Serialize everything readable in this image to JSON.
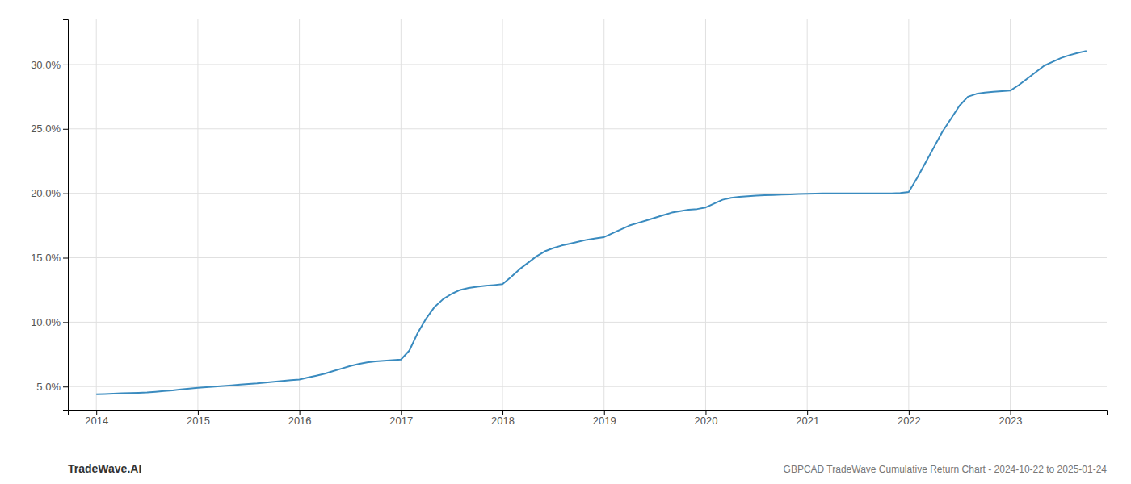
{
  "chart_data": {
    "type": "line",
    "title": "GBPCAD TradeWave Cumulative Return Chart - 2024-10-22 to 2025-01-24",
    "annotations": [
      "TradeWave.AI"
    ],
    "color": "#3a8bbf",
    "grid": true,
    "x": [
      2014.0,
      2014.083,
      2014.167,
      2014.25,
      2014.333,
      2014.417,
      2014.5,
      2014.583,
      2014.667,
      2014.75,
      2014.833,
      2014.917,
      2015.0,
      2015.083,
      2015.167,
      2015.25,
      2015.333,
      2015.417,
      2015.5,
      2015.583,
      2015.667,
      2015.75,
      2015.833,
      2015.917,
      2016.0,
      2016.083,
      2016.167,
      2016.25,
      2016.333,
      2016.417,
      2016.5,
      2016.583,
      2016.667,
      2016.75,
      2016.833,
      2016.917,
      2017.0,
      2017.083,
      2017.167,
      2017.25,
      2017.333,
      2017.417,
      2017.5,
      2017.583,
      2017.667,
      2017.75,
      2017.833,
      2017.917,
      2018.0,
      2018.083,
      2018.167,
      2018.25,
      2018.333,
      2018.417,
      2018.5,
      2018.583,
      2018.667,
      2018.75,
      2018.833,
      2018.917,
      2019.0,
      2019.083,
      2019.167,
      2019.25,
      2019.333,
      2019.417,
      2019.5,
      2019.583,
      2019.667,
      2019.75,
      2019.833,
      2019.917,
      2020.0,
      2020.083,
      2020.167,
      2020.25,
      2020.333,
      2020.417,
      2020.5,
      2020.583,
      2020.667,
      2020.75,
      2020.833,
      2020.917,
      2021.0,
      2021.083,
      2021.167,
      2021.25,
      2021.333,
      2021.417,
      2021.5,
      2021.583,
      2021.667,
      2021.75,
      2021.833,
      2021.917,
      2022.0,
      2022.083,
      2022.167,
      2022.25,
      2022.333,
      2022.417,
      2022.5,
      2022.583,
      2022.667,
      2022.75,
      2022.833,
      2022.917,
      2023.0,
      2023.083,
      2023.167,
      2023.25,
      2023.333,
      2023.417,
      2023.5,
      2023.583,
      2023.667,
      2023.75
    ],
    "values": [
      4.4,
      4.42,
      4.45,
      4.48,
      4.5,
      4.52,
      4.55,
      4.6,
      4.65,
      4.7,
      4.78,
      4.85,
      4.9,
      4.95,
      5.0,
      5.05,
      5.1,
      5.15,
      5.2,
      5.25,
      5.32,
      5.38,
      5.44,
      5.5,
      5.55,
      5.7,
      5.85,
      6.0,
      6.2,
      6.4,
      6.6,
      6.75,
      6.88,
      6.95,
      7.0,
      7.05,
      7.1,
      7.8,
      9.2,
      10.3,
      11.2,
      11.8,
      12.2,
      12.5,
      12.65,
      12.75,
      12.82,
      12.88,
      12.95,
      13.5,
      14.1,
      14.6,
      15.1,
      15.5,
      15.75,
      15.95,
      16.1,
      16.25,
      16.4,
      16.5,
      16.6,
      16.9,
      17.2,
      17.5,
      17.7,
      17.9,
      18.1,
      18.3,
      18.5,
      18.62,
      18.72,
      18.78,
      18.9,
      19.2,
      19.5,
      19.65,
      19.72,
      19.78,
      19.82,
      19.85,
      19.87,
      19.9,
      19.92,
      19.94,
      19.96,
      19.98,
      19.99,
      20.0,
      20.0,
      20.0,
      20.0,
      20.0,
      20.0,
      20.0,
      20.0,
      20.02,
      20.1,
      21.2,
      22.4,
      23.6,
      24.8,
      25.8,
      26.8,
      27.5,
      27.72,
      27.82,
      27.88,
      27.93,
      27.97,
      28.4,
      28.9,
      29.4,
      29.9,
      30.2,
      30.5,
      30.72,
      30.9,
      31.05
    ],
    "xlim": [
      2013.72,
      2023.95
    ],
    "ylim": [
      3.2,
      33.5
    ],
    "xticks": [
      2014,
      2015,
      2016,
      2017,
      2018,
      2019,
      2020,
      2021,
      2022,
      2023
    ],
    "yticks": [
      {
        "value": 5.0,
        "label": "5.0%"
      },
      {
        "value": 10.0,
        "label": "10.0%"
      },
      {
        "value": 15.0,
        "label": "15.0%"
      },
      {
        "value": 20.0,
        "label": "20.0%"
      },
      {
        "value": 25.0,
        "label": "25.0%"
      },
      {
        "value": 30.0,
        "label": "30.0%"
      }
    ]
  }
}
